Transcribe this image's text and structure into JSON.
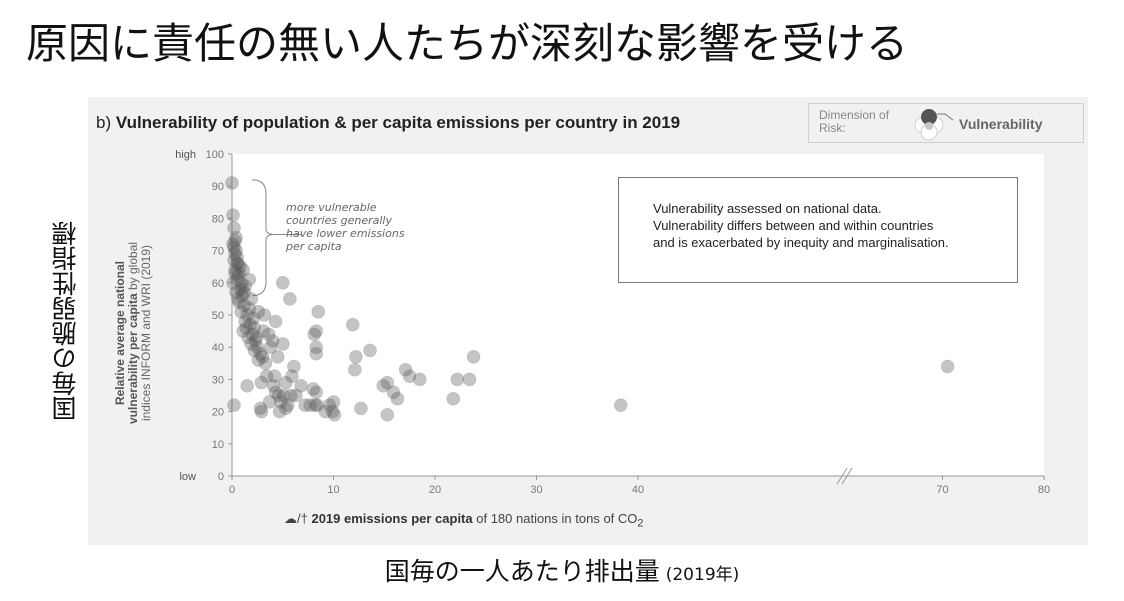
{
  "slide": {
    "title": "原因に責任の無い人たちが深刻な影響を受ける",
    "ylabel_ja": "国毎の脆弱性指標",
    "xlabel_ja": "国毎の一人あたり排出量",
    "xlabel_ja_year": "(2019年)"
  },
  "figure": {
    "title_prefix": "b)",
    "title": "Vulnerability of population & per capita emissions per country in 2019",
    "legend": {
      "dimension_label": "Dimension of Risk:",
      "value": "Vulnerability",
      "colors": {
        "top": "#555555",
        "left": "#ffffff",
        "right": "#ffffff",
        "bottom": "#ffffff",
        "center": "#c8c8c8"
      }
    },
    "note_lines": [
      "Vulnerability assessed on national data.",
      "Vulnerability differs between and within countries",
      "and is exacerbated by inequity and marginalisation."
    ],
    "annotation_lines": [
      "more vulnerable",
      "countries generally",
      "have lower emissions",
      "per capita"
    ],
    "ylabel": {
      "bold_1": "Relative average national",
      "bold_2": "vulnerability per capita",
      "rest_2": " by global",
      "line_3": "indices INFORM and WRI (2019)"
    },
    "xlabel": {
      "icons": "☁/†",
      "bold": "2019 emissions per capita",
      "rest": " of 180 nations in tons of CO",
      "sub": "2"
    },
    "point_color": "#555555"
  },
  "chart_data": {
    "type": "scatter",
    "title": "Vulnerability of population & per capita emissions per country in 2019",
    "xlabel": "2019 emissions per capita of 180 nations in tons of CO2",
    "ylabel": "Relative average national vulnerability per capita by global indices INFORM and WRI (2019)",
    "xlim": [
      0,
      80
    ],
    "ylim": [
      0,
      100
    ],
    "x_ticks": [
      0,
      10,
      20,
      30,
      40,
      70,
      80
    ],
    "y_ticks": [
      0,
      10,
      20,
      30,
      40,
      50,
      60,
      70,
      80,
      90,
      100
    ],
    "y_end_labels": {
      "high": "high",
      "low": "low"
    },
    "grid": false,
    "axis_break": true,
    "points": [
      [
        0,
        91
      ],
      [
        0.1,
        81
      ],
      [
        0.2,
        77
      ],
      [
        0.3,
        73
      ],
      [
        0.4,
        70
      ],
      [
        0.2,
        67
      ],
      [
        0.5,
        66
      ],
      [
        0.3,
        64
      ],
      [
        0.6,
        62
      ],
      [
        0.1,
        60
      ],
      [
        0.8,
        58
      ],
      [
        0.4,
        57
      ],
      [
        1.0,
        56
      ],
      [
        0.7,
        54
      ],
      [
        1.2,
        53
      ],
      [
        0.9,
        51
      ],
      [
        1.5,
        50
      ],
      [
        1.3,
        48
      ],
      [
        1.8,
        47
      ],
      [
        1.1,
        45
      ],
      [
        2.0,
        44
      ],
      [
        1.6,
        43
      ],
      [
        2.3,
        42
      ],
      [
        1.9,
        41
      ],
      [
        2.5,
        40
      ],
      [
        2.2,
        39
      ],
      [
        2.8,
        38
      ],
      [
        3.0,
        37
      ],
      [
        2.6,
        36
      ],
      [
        3.3,
        35
      ],
      [
        0.2,
        71
      ],
      [
        0.5,
        68
      ],
      [
        0.3,
        63
      ],
      [
        0.9,
        60
      ],
      [
        1.2,
        57
      ],
      [
        0.6,
        55
      ],
      [
        1.7,
        52
      ],
      [
        2.1,
        49
      ],
      [
        1.4,
        46
      ],
      [
        2.4,
        43
      ],
      [
        3.1,
        45
      ],
      [
        3.6,
        44
      ],
      [
        4.0,
        42
      ],
      [
        3.8,
        40
      ],
      [
        1.7,
        61
      ],
      [
        2.6,
        51
      ],
      [
        3.2,
        50
      ],
      [
        4.3,
        48
      ],
      [
        0.4,
        74
      ],
      [
        0.8,
        65
      ],
      [
        1.1,
        64
      ],
      [
        0.3,
        69
      ],
      [
        0.7,
        63
      ],
      [
        1.3,
        59
      ],
      [
        0.5,
        61
      ],
      [
        1.9,
        55
      ],
      [
        0.1,
        72
      ],
      [
        1.0,
        58
      ],
      [
        0.6,
        66
      ],
      [
        2.2,
        46
      ],
      [
        5.0,
        60
      ],
      [
        5.7,
        55
      ],
      [
        5.0,
        41
      ],
      [
        4.5,
        37
      ],
      [
        3.4,
        31
      ],
      [
        4.2,
        31
      ],
      [
        2.9,
        29
      ],
      [
        5.3,
        29
      ],
      [
        4.3,
        26
      ],
      [
        4.6,
        25
      ],
      [
        5.1,
        25
      ],
      [
        4.8,
        23
      ],
      [
        5.8,
        25
      ],
      [
        6.3,
        25
      ],
      [
        5.9,
        31
      ],
      [
        6.1,
        34
      ],
      [
        4.7,
        20
      ],
      [
        5.3,
        21
      ],
      [
        2.9,
        20
      ],
      [
        1.5,
        28
      ],
      [
        0.2,
        22
      ],
      [
        2.8,
        21
      ],
      [
        3.7,
        23
      ],
      [
        4.1,
        28
      ],
      [
        5.5,
        22
      ],
      [
        6.8,
        28
      ],
      [
        7.2,
        22
      ],
      [
        7.7,
        22
      ],
      [
        8.2,
        22
      ],
      [
        8.4,
        22
      ],
      [
        8.0,
        27
      ],
      [
        8.3,
        26
      ],
      [
        8.3,
        45
      ],
      [
        8.1,
        44
      ],
      [
        8.3,
        40
      ],
      [
        8.3,
        38
      ],
      [
        8.5,
        51
      ],
      [
        9.2,
        20
      ],
      [
        9.6,
        22
      ],
      [
        9.9,
        20
      ],
      [
        10.0,
        23
      ],
      [
        10.1,
        19
      ],
      [
        11.9,
        47
      ],
      [
        12.2,
        37
      ],
      [
        12.1,
        33
      ],
      [
        12.7,
        21
      ],
      [
        13.6,
        39
      ],
      [
        14.9,
        28
      ],
      [
        15.3,
        29
      ],
      [
        15.3,
        19
      ],
      [
        15.9,
        26
      ],
      [
        16.3,
        24
      ],
      [
        17.1,
        33
      ],
      [
        17.5,
        31
      ],
      [
        18.5,
        30
      ],
      [
        21.8,
        24
      ],
      [
        22.2,
        30
      ],
      [
        23.4,
        30
      ],
      [
        23.8,
        37
      ],
      [
        38.3,
        22
      ],
      [
        70.5,
        34
      ]
    ]
  }
}
